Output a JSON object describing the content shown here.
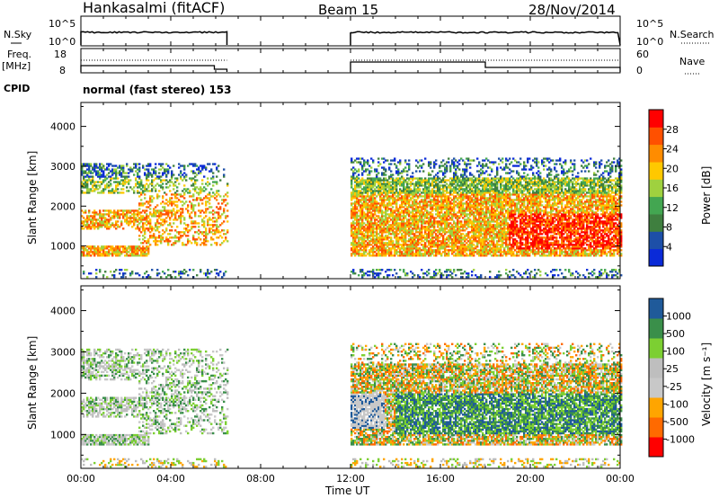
{
  "header": {
    "station": "Hankasalmi (fitACF)",
    "beam": "Beam 15",
    "date": "28/Nov/2014"
  },
  "left_labels": {
    "nsky": "N.Sky",
    "freq_line1": "Freq.",
    "freq_line2": "[MHz]",
    "cpid": "CPID"
  },
  "right_labels": {
    "nsearch": "N.Search",
    "nave": "Nave"
  },
  "cpid_text": "normal (fast stereo) 153",
  "colors": {
    "power": [
      "#0a2ad8",
      "#1d4fa8",
      "#3f7f3f",
      "#43a651",
      "#9fd13f",
      "#ffc800",
      "#ff8c00",
      "#ff5000",
      "#ff0000"
    ],
    "velocity": [
      "#ff0000",
      "#ff6a00",
      "#ffa500",
      "#c8c8c8",
      "#bebebe",
      "#7ccf32",
      "#3a8f4a",
      "#1f5a9a",
      "#1030c8"
    ]
  },
  "chart_data": [
    {
      "type": "line",
      "name": "nsky-nsearch",
      "ylim_left_ticks": [
        "10^5",
        "10^0"
      ],
      "ylim_right_ticks": [
        "10^5",
        "10^0"
      ],
      "segments": [
        [
          0.0,
          6.5
        ],
        [
          12.0,
          24.0
        ]
      ],
      "left_label": "N.Sky",
      "right_label": "N.Search"
    },
    {
      "type": "line",
      "name": "freq-nave",
      "left_ticks": [
        "18",
        "8"
      ],
      "right_ticks": [
        "60",
        "0"
      ],
      "segments": [
        [
          0.0,
          6.5
        ],
        [
          12.0,
          24.0
        ]
      ],
      "left_label": "Freq. [MHz]",
      "right_label": "Nave"
    },
    {
      "type": "heatmap",
      "name": "power",
      "ylabel": "Slant Range [km]",
      "yticks": [
        1000,
        2000,
        3000,
        4000
      ],
      "ylim": [
        180,
        4600
      ],
      "colorbar_label": "Power [dB]",
      "colorbar_ticks": [
        "4",
        "8",
        "12",
        "16",
        "20",
        "24",
        "28"
      ],
      "colorbar_range": [
        0,
        30
      ],
      "data_coverage_hours": [
        [
          0.0,
          6.5
        ],
        [
          12.0,
          24.0
        ]
      ]
    },
    {
      "type": "heatmap",
      "name": "velocity",
      "ylabel": "Slant Range [km]",
      "yticks": [
        1000,
        2000,
        3000,
        4000
      ],
      "ylim": [
        180,
        4600
      ],
      "colorbar_label": "Velocity [m s⁻¹]",
      "colorbar_ticks": [
        "1000",
        "500",
        "100",
        "25",
        "-25",
        "-100",
        "-500",
        "-1000"
      ],
      "data_coverage_hours": [
        [
          0.0,
          6.5
        ],
        [
          12.0,
          24.0
        ]
      ]
    }
  ],
  "xaxis": {
    "label": "Time UT",
    "ticks": [
      "00:00",
      "04:00",
      "08:00",
      "12:00",
      "16:00",
      "20:00",
      "00:00"
    ],
    "range_hours": [
      0,
      24
    ]
  }
}
